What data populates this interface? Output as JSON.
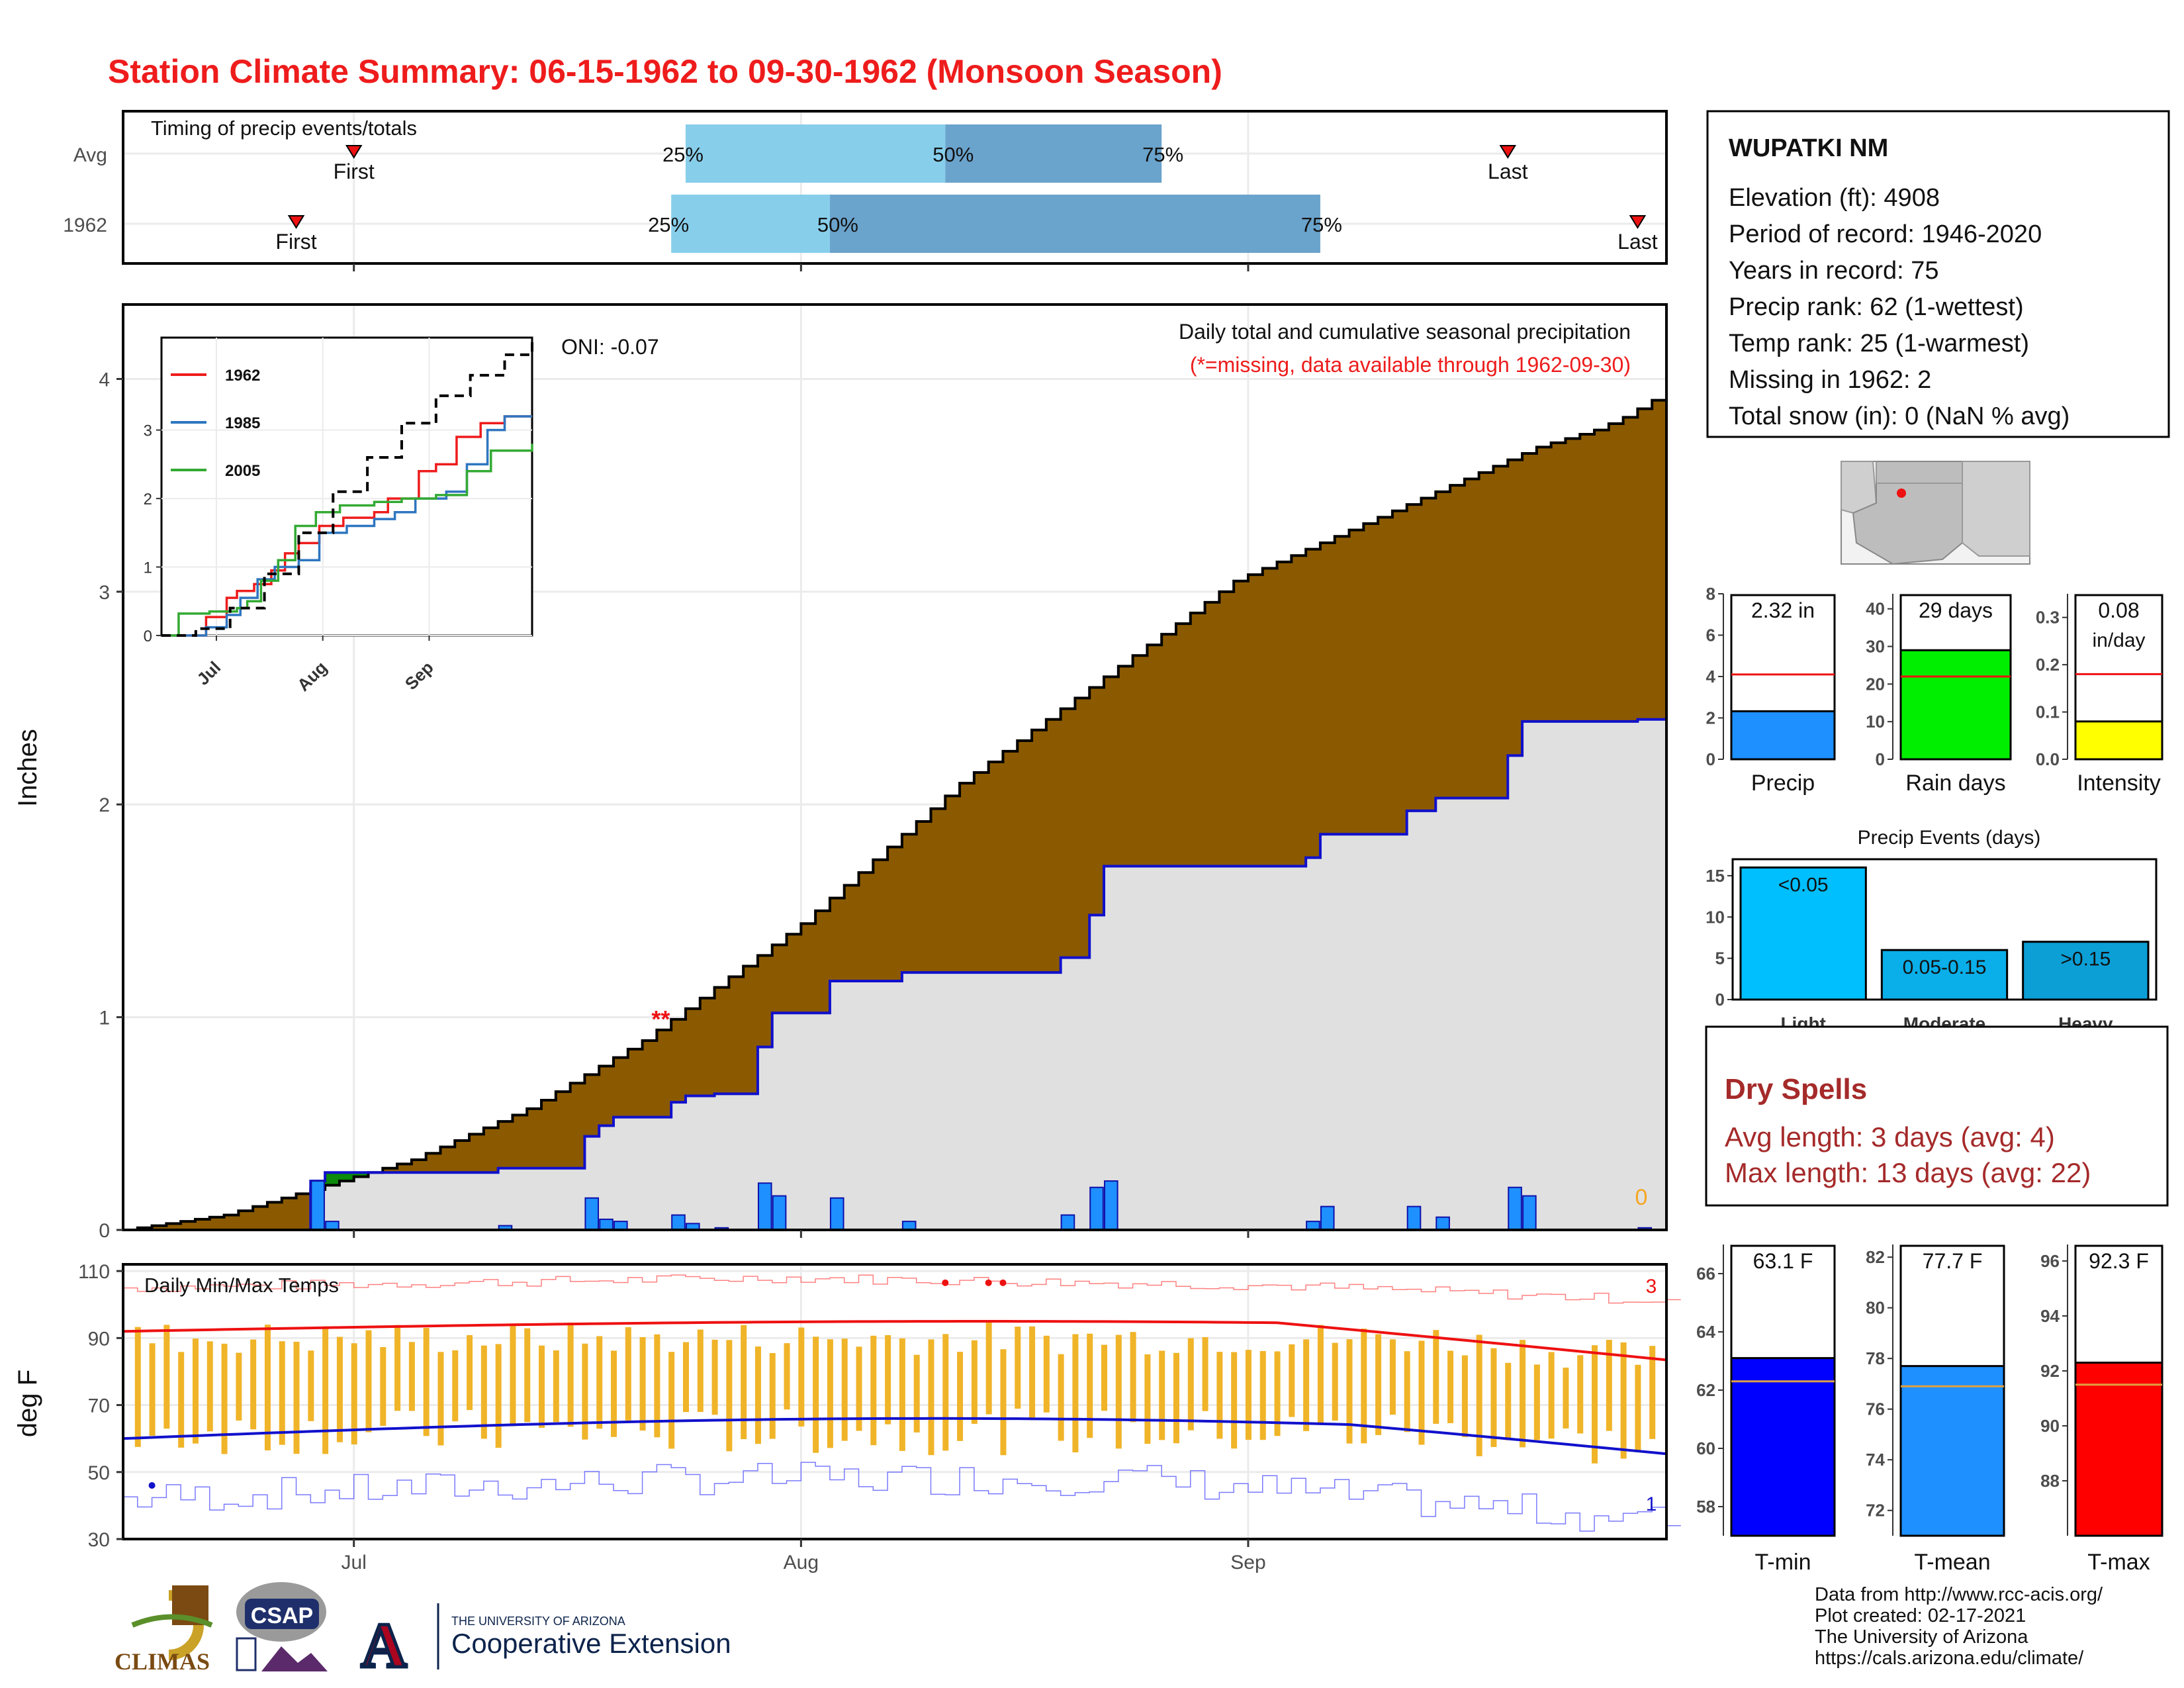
{
  "title": "Station Climate Summary: 06-15-1962 to 09-30-1962 (Monsoon Season)",
  "colors": {
    "title_red": "#ee1c1c",
    "cum_avg_fill": "#8b5a00",
    "cum_deficit_fill": "#0b8a0b",
    "cum_year_fill": "#e0e0e0",
    "year_line": "#1010cc",
    "daily_bar": "#1e90ff",
    "temp_bar": "#f0b429",
    "avg_max_line": "#ee1111",
    "avg_min_line": "#1111cc",
    "timing_q1": "#87ceeb",
    "timing_q2": "#6aa3cc"
  },
  "chart_data": [
    {
      "id": "timing",
      "type": "bar",
      "title": "Timing of precip events/totals",
      "rows": [
        "Avg",
        "1962"
      ],
      "x_domain_days": [
        0,
        107
      ],
      "avg": {
        "first_day": 16,
        "q25_day": 39,
        "q50_day": 57,
        "q75_day": 72,
        "last_day": 96
      },
      "year": {
        "first_day": 12,
        "q25_day": 38,
        "q50_day": 49,
        "q75_day": 83,
        "last_day": 105
      },
      "labels": {
        "first": "First",
        "last": "Last",
        "q25": "25%",
        "q50": "50%",
        "q75": "75%"
      }
    },
    {
      "id": "precip",
      "type": "area",
      "title": "Daily total and cumulative seasonal precipitation",
      "subtitle": "(*=missing, data available through 1962-09-30)",
      "ylabel": "Inches",
      "ylim": [
        0,
        4.35
      ],
      "yticks": [
        0,
        1,
        2,
        3,
        4
      ],
      "xticks": [
        {
          "day": 16,
          "label": "Jul"
        },
        {
          "day": 47,
          "label": "Aug"
        },
        {
          "day": 78,
          "label": "Sep"
        }
      ],
      "oni_label": "ONI: -0.07",
      "missing_marker": "**",
      "missing_marker_day": 37,
      "snow_label": "0",
      "avg_cumulative": [
        0,
        0.01,
        0.02,
        0.03,
        0.04,
        0.05,
        0.06,
        0.07,
        0.09,
        0.11,
        0.13,
        0.15,
        0.17,
        0.19,
        0.21,
        0.23,
        0.25,
        0.27,
        0.29,
        0.31,
        0.33,
        0.36,
        0.39,
        0.42,
        0.45,
        0.48,
        0.51,
        0.54,
        0.57,
        0.61,
        0.65,
        0.69,
        0.73,
        0.77,
        0.81,
        0.85,
        0.89,
        0.94,
        0.99,
        1.04,
        1.09,
        1.14,
        1.19,
        1.24,
        1.29,
        1.34,
        1.39,
        1.44,
        1.5,
        1.56,
        1.62,
        1.68,
        1.74,
        1.8,
        1.86,
        1.92,
        1.98,
        2.04,
        2.1,
        2.15,
        2.2,
        2.25,
        2.3,
        2.35,
        2.4,
        2.45,
        2.5,
        2.55,
        2.6,
        2.65,
        2.7,
        2.75,
        2.8,
        2.85,
        2.9,
        2.95,
        3.0,
        3.05,
        3.08,
        3.11,
        3.14,
        3.17,
        3.2,
        3.23,
        3.26,
        3.29,
        3.32,
        3.35,
        3.38,
        3.41,
        3.44,
        3.47,
        3.5,
        3.53,
        3.56,
        3.59,
        3.62,
        3.65,
        3.68,
        3.7,
        3.72,
        3.74,
        3.76,
        3.79,
        3.82,
        3.86,
        3.9,
        3.94
      ],
      "daily_1962": [
        {
          "day": 13,
          "value": 0.23
        },
        {
          "day": 14,
          "value": 0.04
        },
        {
          "day": 26,
          "value": 0.02
        },
        {
          "day": 32,
          "value": 0.15
        },
        {
          "day": 33,
          "value": 0.05
        },
        {
          "day": 34,
          "value": 0.04
        },
        {
          "day": 38,
          "value": 0.07
        },
        {
          "day": 39,
          "value": 0.03
        },
        {
          "day": 41,
          "value": 0.01
        },
        {
          "day": 44,
          "value": 0.22
        },
        {
          "day": 45,
          "value": 0.16
        },
        {
          "day": 49,
          "value": 0.15
        },
        {
          "day": 54,
          "value": 0.04
        },
        {
          "day": 65,
          "value": 0.07
        },
        {
          "day": 67,
          "value": 0.2
        },
        {
          "day": 68,
          "value": 0.23
        },
        {
          "day": 82,
          "value": 0.04
        },
        {
          "day": 83,
          "value": 0.11
        },
        {
          "day": 89,
          "value": 0.11
        },
        {
          "day": 91,
          "value": 0.06
        },
        {
          "day": 96,
          "value": 0.2
        },
        {
          "day": 97,
          "value": 0.16
        },
        {
          "day": 105,
          "value": 0.01
        }
      ]
    },
    {
      "id": "inset",
      "type": "line",
      "xticks": [
        "Jul",
        "Aug",
        "Sep"
      ],
      "yticks": [
        0,
        1,
        2,
        3
      ],
      "series": [
        {
          "name": "1962",
          "color": "#ee1c1c",
          "steps": [
            [
              0,
              0
            ],
            [
              13,
              0.27
            ],
            [
              19,
              0.55
            ],
            [
              22,
              0.65
            ],
            [
              27,
              0.75
            ],
            [
              32,
              0.95
            ],
            [
              36,
              1.2
            ],
            [
              40,
              1.35
            ],
            [
              46,
              1.6
            ],
            [
              53,
              1.72
            ],
            [
              62,
              1.8
            ],
            [
              66,
              2.0
            ],
            [
              75,
              2.4
            ],
            [
              80,
              2.5
            ],
            [
              86,
              2.9
            ],
            [
              93,
              3.1
            ],
            [
              100,
              3.2
            ],
            [
              108,
              3.2
            ]
          ]
        },
        {
          "name": "1985",
          "color": "#2e76c0",
          "steps": [
            [
              0,
              0
            ],
            [
              13,
              0.12
            ],
            [
              19,
              0.3
            ],
            [
              23,
              0.55
            ],
            [
              28,
              0.82
            ],
            [
              33,
              1.0
            ],
            [
              40,
              1.1
            ],
            [
              46,
              1.5
            ],
            [
              54,
              1.6
            ],
            [
              62,
              1.7
            ],
            [
              68,
              1.8
            ],
            [
              74,
              2.0
            ],
            [
              83,
              2.1
            ],
            [
              89,
              2.5
            ],
            [
              95,
              3.0
            ],
            [
              100,
              3.2
            ],
            [
              108,
              3.2
            ]
          ]
        },
        {
          "name": "2005",
          "color": "#33aa33",
          "steps": [
            [
              0,
              0
            ],
            [
              5,
              0.32
            ],
            [
              14,
              0.35
            ],
            [
              22,
              0.4
            ],
            [
              25,
              0.5
            ],
            [
              29,
              0.8
            ],
            [
              34,
              1.1
            ],
            [
              39,
              1.6
            ],
            [
              45,
              1.8
            ],
            [
              52,
              1.9
            ],
            [
              62,
              1.95
            ],
            [
              70,
              2.0
            ],
            [
              80,
              2.05
            ],
            [
              89,
              2.4
            ],
            [
              96,
              2.7
            ],
            [
              108,
              2.8
            ]
          ]
        },
        {
          "name": "",
          "color": "#000000",
          "dash": true,
          "steps": [
            [
              0,
              0
            ],
            [
              10,
              0.1
            ],
            [
              20,
              0.4
            ],
            [
              30,
              0.9
            ],
            [
              40,
              1.5
            ],
            [
              50,
              2.1
            ],
            [
              60,
              2.6
            ],
            [
              70,
              3.1
            ],
            [
              80,
              3.5
            ],
            [
              90,
              3.8
            ],
            [
              100,
              4.1
            ],
            [
              108,
              4.3
            ]
          ]
        }
      ]
    },
    {
      "id": "temps",
      "type": "bar",
      "title": "Daily Min/Max Temps",
      "ylabel": "deg F",
      "ylim": [
        30,
        112
      ],
      "yticks": [
        30,
        50,
        70,
        90,
        110
      ],
      "xticks": [
        "Jul",
        "Aug",
        "Sep"
      ],
      "record_high_count": "3",
      "record_low_count": "1"
    },
    {
      "id": "season_bars",
      "type": "bar",
      "panels": [
        {
          "label": "Precip",
          "value": 2.32,
          "display": "2.32 in",
          "avg": 4.1,
          "ylim": [
            0,
            8
          ],
          "yticks": [
            0,
            2,
            4,
            6,
            8
          ],
          "color": "#1e90ff"
        },
        {
          "label": "Rain days",
          "value": 29,
          "display": "29 days",
          "avg": 22,
          "ylim": [
            0,
            44
          ],
          "yticks": [
            0,
            10,
            20,
            30,
            40
          ],
          "color": "#00ee00"
        },
        {
          "label": "Intensity",
          "value": 0.08,
          "display": "0.08",
          "display2": "in/day",
          "avg": 0.18,
          "ylim": [
            0,
            0.35
          ],
          "yticks": [
            "0.0",
            "0.1",
            "0.2",
            "0.3"
          ],
          "color": "#ffff00"
        }
      ]
    },
    {
      "id": "events",
      "type": "bar",
      "title": "Precip Events (days)",
      "categories": [
        "Light",
        "Moderate",
        "Heavy"
      ],
      "values": [
        16,
        6,
        7
      ],
      "bar_labels": [
        "<0.05",
        "0.05-0.15",
        ">0.15"
      ],
      "ylim": [
        0,
        17
      ],
      "yticks": [
        0,
        5,
        10,
        15
      ],
      "colors": [
        "#00bfff",
        "#0aaee8",
        "#0b9fd6"
      ]
    },
    {
      "id": "temp_bars",
      "type": "bar",
      "panels": [
        {
          "label": "T-min",
          "value": 63.1,
          "display": "63.1 F",
          "avg": 62.3,
          "ylim": [
            57,
            67
          ],
          "yticks": [
            58,
            60,
            62,
            64,
            66
          ],
          "color": "#0000ff"
        },
        {
          "label": "T-mean",
          "value": 77.7,
          "display": "77.7 F",
          "avg": 76.9,
          "ylim": [
            71,
            82.5
          ],
          "yticks": [
            72,
            74,
            76,
            78,
            80,
            82
          ],
          "color": "#1e90ff"
        },
        {
          "label": "T-max",
          "value": 92.3,
          "display": "92.3 F",
          "avg": 91.5,
          "ylim": [
            86,
            96.6
          ],
          "yticks": [
            88,
            90,
            92,
            94,
            96
          ],
          "color": "#ff0000"
        }
      ]
    }
  ],
  "station": {
    "name": "WUPATKI NM",
    "lines": [
      "Elevation (ft): 4908",
      "Period of record: 1946-2020",
      "Years in record: 75",
      "Precip rank: 62 (1-wettest)",
      "Temp rank: 25 (1-warmest)",
      "Missing in 1962: 2",
      "Total snow (in): 0 (NaN % avg)"
    ]
  },
  "dry_spells": {
    "title": "Dry Spells",
    "avg_line": "Avg length: 3 days (avg: 4)",
    "max_line": "Max length: 13 days (avg: 22)"
  },
  "footer": {
    "lines": [
      "Data from http://www.rcc-acis.org/",
      "Plot created: 02-17-2021",
      "The University of Arizona",
      "https://cals.arizona.edu/climate/"
    ],
    "logos": {
      "climas": "CLIMAS",
      "csap": "CSAP",
      "ua_letter": "A",
      "ua_small": "THE UNIVERSITY OF ARIZONA",
      "ua_big": "Cooperative Extension"
    }
  }
}
